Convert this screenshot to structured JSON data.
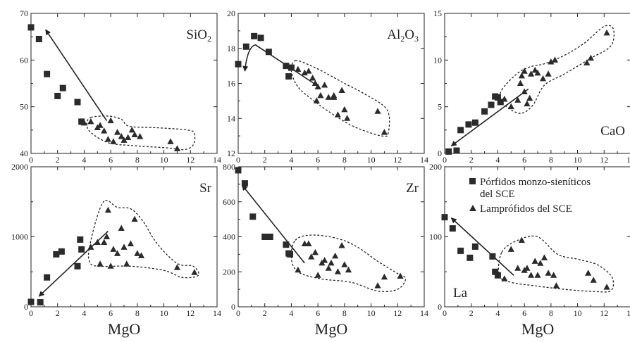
{
  "chart_data": [
    {
      "type": "scatter",
      "title": "SiO2",
      "title_main": "SiO",
      "title_sub": "2",
      "xlabel": "",
      "xlim": [
        0,
        14
      ],
      "ylim": [
        40,
        70
      ],
      "xticks": [
        "0",
        "2",
        "4",
        "6",
        "8",
        "10",
        "12",
        "14"
      ],
      "yticks": [
        "40",
        "50",
        "60",
        "70"
      ],
      "series": [
        {
          "name": "Pórfidos monzo-sieníticos del SCE",
          "marker": "square",
          "x": [
            0,
            0.6,
            1.2,
            2,
            2.4,
            3.5,
            3.8
          ],
          "y": [
            67,
            64.5,
            57,
            52.3,
            54,
            51,
            46.8
          ]
        },
        {
          "name": "Lamprófidos del SCE",
          "marker": "triangle",
          "x": [
            4,
            4.5,
            5,
            5.2,
            5.5,
            5.8,
            6,
            6.2,
            6.5,
            6.8,
            7,
            7.3,
            7.6,
            7.8,
            8.2,
            10.5,
            11
          ],
          "y": [
            46.5,
            46.8,
            45.5,
            46,
            44.8,
            43,
            47,
            42.5,
            44.5,
            43.6,
            42.8,
            43.4,
            45,
            44,
            43.6,
            42.5,
            41
          ]
        }
      ],
      "arrow": {
        "from": [
          5.7,
          47
        ],
        "to": [
          1.1,
          66.5
        ]
      },
      "field": [
        [
          4.5,
          47.7
        ],
        [
          5.8,
          48
        ],
        [
          6.8,
          47.3
        ],
        [
          7.4,
          45.8
        ],
        [
          9.5,
          45.5
        ],
        [
          11.8,
          45
        ],
        [
          12.3,
          44.2
        ],
        [
          12.2,
          41.8
        ],
        [
          11.5,
          40.8
        ],
        [
          10.2,
          41.2
        ],
        [
          7.5,
          41.7
        ],
        [
          5.8,
          42.3
        ],
        [
          4.5,
          44.5
        ],
        [
          4.2,
          46.3
        ]
      ]
    },
    {
      "type": "scatter",
      "title": "Al2O3",
      "title_main": "Al",
      "title_sub": "2",
      "title_main2": "O",
      "title_sub2": "3",
      "xlabel": "",
      "xlim": [
        0,
        14
      ],
      "ylim": [
        12,
        20
      ],
      "xticks": [
        "0",
        "2",
        "4",
        "6",
        "8",
        "10",
        "12",
        "14"
      ],
      "yticks": [
        "12",
        "14",
        "16",
        "18",
        "20"
      ],
      "series": [
        {
          "name": "Pórfidos monzo-sieníticos del SCE",
          "marker": "square",
          "x": [
            0,
            0.6,
            1.2,
            1.7,
            2.3,
            3.6,
            3.8,
            4
          ],
          "y": [
            17.1,
            18.1,
            18.7,
            18.6,
            17.8,
            17,
            16.4,
            16.9
          ]
        },
        {
          "name": "Lamprófidos del SCE",
          "marker": "triangle",
          "x": [
            4.5,
            5,
            5.3,
            5.6,
            5.8,
            6,
            6.2,
            6.5,
            6.8,
            7.2,
            7.5,
            7.8,
            8,
            8.2,
            10.5,
            11
          ],
          "y": [
            16.8,
            16.6,
            16.7,
            16.3,
            16,
            15.8,
            15.3,
            15.9,
            15.2,
            15.3,
            14.2,
            15.6,
            14.5,
            14,
            14.4,
            13.2
          ]
        },
        {
          "name": "",
          "marker": "triangle",
          "x": [
            5.9,
            7.2
          ],
          "y": [
            15,
            15.2
          ]
        }
      ],
      "arrow": {
        "points": [
          [
            5.7,
            16
          ],
          [
            1.3,
            18.2
          ],
          [
            0.7,
            18.1
          ],
          [
            0.5,
            16.7
          ]
        ]
      },
      "field": [
        [
          4.3,
          17.3
        ],
        [
          5.5,
          17
        ],
        [
          6.8,
          16.5
        ],
        [
          8,
          16
        ],
        [
          9.5,
          15.4
        ],
        [
          11.2,
          14.5
        ],
        [
          11.3,
          13.2
        ],
        [
          10.8,
          13
        ],
        [
          8.8,
          13.5
        ],
        [
          7.2,
          14.2
        ],
        [
          5.7,
          15
        ],
        [
          4.5,
          15.8
        ],
        [
          4,
          16.7
        ]
      ]
    },
    {
      "type": "scatter",
      "title": "CaO",
      "xlabel": "",
      "xlim": [
        0,
        14
      ],
      "ylim": [
        0,
        15
      ],
      "xticks": [
        "0",
        "2",
        "4",
        "6",
        "8",
        "10",
        "12",
        "14"
      ],
      "yticks": [
        "0",
        "5",
        "10",
        "15"
      ],
      "series": [
        {
          "name": "Pórfidos monzo-sieníticos del SCE",
          "marker": "square",
          "x": [
            0.3,
            0.9,
            1.2,
            1.8,
            2.3,
            3,
            3.5,
            3.8,
            4,
            4.2
          ],
          "y": [
            0.2,
            0.3,
            2.5,
            3.1,
            3.3,
            4.5,
            5.2,
            6.1,
            6,
            5.5
          ]
        },
        {
          "name": "Lamprófidos del SCE",
          "marker": "triangle",
          "x": [
            4.5,
            5,
            5.5,
            5.7,
            5.8,
            6,
            6.2,
            6.5,
            6.8,
            7,
            7.4,
            7.8,
            8,
            8.3,
            10.7,
            11,
            12.2
          ],
          "y": [
            5.8,
            5,
            5.7,
            7.5,
            8.3,
            8.8,
            5.3,
            8.5,
            8.9,
            8.6,
            8,
            8.5,
            9.8,
            10,
            9.7,
            10.2,
            12.9
          ]
        },
        {
          "name": "",
          "marker": "triangle",
          "x": [
            6,
            6.4
          ],
          "y": [
            6.6,
            5.9
          ]
        }
      ],
      "arrow": {
        "from": [
          6.3,
          6.9
        ],
        "to": [
          0.5,
          0.8
        ]
      },
      "field": [
        [
          4.3,
          6.8
        ],
        [
          5.5,
          8.6
        ],
        [
          6.5,
          9.3
        ],
        [
          7.5,
          9.6
        ],
        [
          9,
          10.5
        ],
        [
          10.5,
          11.8
        ],
        [
          12,
          13.6
        ],
        [
          12.7,
          13.3
        ],
        [
          12.5,
          11.5
        ],
        [
          11,
          10.2
        ],
        [
          9,
          8.5
        ],
        [
          7.5,
          7.3
        ],
        [
          6.6,
          5.1
        ],
        [
          5.6,
          4.3
        ],
        [
          4.3,
          5.5
        ]
      ]
    },
    {
      "type": "scatter",
      "title": "Sr",
      "xlabel": "MgO",
      "xlim": [
        0,
        14
      ],
      "ylim": [
        0,
        2000
      ],
      "xticks": [
        "0",
        "2",
        "4",
        "6",
        "8",
        "10",
        "12",
        "14"
      ],
      "yticks": [
        "0",
        "1000",
        "2000"
      ],
      "series": [
        {
          "name": "Pórfidos monzo-sieníticos del SCE",
          "marker": "square",
          "x": [
            0,
            0.7,
            1.2,
            1.9,
            2.3,
            3.5,
            3.7,
            3.8
          ],
          "y": [
            70,
            65,
            420,
            750,
            790,
            580,
            960,
            820
          ]
        },
        {
          "name": "Lamprófidos del SCE",
          "marker": "triangle",
          "x": [
            4.5,
            5,
            5.2,
            5.5,
            5.7,
            5.8,
            6,
            6.2,
            6.5,
            6.8,
            7,
            7.2,
            7.5,
            7.8,
            8,
            8.3,
            11,
            12.3
          ],
          "y": [
            850,
            920,
            610,
            920,
            1000,
            1380,
            580,
            820,
            760,
            1120,
            850,
            610,
            900,
            1250,
            760,
            730,
            560,
            490
          ]
        }
      ],
      "arrow": {
        "from": [
          5.8,
          1080
        ],
        "to": [
          0.6,
          150
        ]
      },
      "field": [
        [
          5.6,
          1520
        ],
        [
          6.5,
          1420
        ],
        [
          7.5,
          1400
        ],
        [
          8.4,
          1230
        ],
        [
          9.5,
          900
        ],
        [
          11,
          620
        ],
        [
          12.2,
          580
        ],
        [
          12.6,
          450
        ],
        [
          11.4,
          420
        ],
        [
          10,
          520
        ],
        [
          7.5,
          580
        ],
        [
          5,
          580
        ],
        [
          4.4,
          650
        ],
        [
          4.4,
          850
        ],
        [
          5,
          1300
        ]
      ]
    },
    {
      "type": "scatter",
      "title": "Zr",
      "xlabel": "MgO",
      "xlim": [
        0,
        14
      ],
      "ylim": [
        0,
        800
      ],
      "xticks": [
        "0",
        "2",
        "4",
        "6",
        "8",
        "10",
        "12",
        "14"
      ],
      "yticks": [
        "0",
        "200",
        "400",
        "600",
        "800"
      ],
      "series": [
        {
          "name": "Pórfidos monzo-sieníticos del SCE",
          "marker": "square",
          "x": [
            0,
            0.5,
            1.1,
            2,
            2.4,
            3.6,
            3.8,
            3.9
          ],
          "y": [
            780,
            705,
            515,
            400,
            400,
            355,
            305,
            300
          ]
        },
        {
          "name": "Lamprófidos del SCE",
          "marker": "triangle",
          "x": [
            4.5,
            5,
            5.3,
            5.5,
            5.8,
            6,
            6.3,
            6.5,
            6.8,
            7,
            7.3,
            7.5,
            7.8,
            8,
            8.3,
            10.5,
            11,
            12.2
          ],
          "y": [
            210,
            360,
            360,
            285,
            310,
            180,
            250,
            265,
            220,
            250,
            290,
            200,
            350,
            240,
            210,
            120,
            170,
            175
          ]
        }
      ],
      "arrow": {
        "from": [
          5,
          250
        ],
        "to": [
          0.3,
          695
        ]
      },
      "field": [
        [
          4.3,
          380
        ],
        [
          5.5,
          410
        ],
        [
          7.5,
          390
        ],
        [
          9,
          340
        ],
        [
          10.5,
          260
        ],
        [
          12,
          190
        ],
        [
          12.6,
          160
        ],
        [
          12,
          100
        ],
        [
          10.5,
          90
        ],
        [
          8.5,
          140
        ],
        [
          6.2,
          160
        ],
        [
          4.5,
          200
        ],
        [
          4,
          280
        ]
      ]
    },
    {
      "type": "scatter",
      "title": "La",
      "xlabel": "MgO",
      "xlim": [
        0,
        14
      ],
      "ylim": [
        0,
        200
      ],
      "xticks": [
        "0",
        "2",
        "4",
        "6",
        "8",
        "10",
        "12",
        "14"
      ],
      "yticks": [
        "0",
        "100",
        "200"
      ],
      "series": [
        {
          "name": "Pórfidos monzo-sieníticos del SCE",
          "marker": "square",
          "x": [
            0,
            0.6,
            1.2,
            1.9,
            2.3,
            3.6,
            3.8,
            4
          ],
          "y": [
            128,
            112,
            80,
            70,
            86,
            72,
            50,
            45
          ]
        },
        {
          "name": "Lamprófidos del SCE",
          "marker": "triangle",
          "x": [
            4.5,
            5,
            5.5,
            5.8,
            6,
            6.2,
            6.5,
            6.8,
            7,
            7.2,
            7.5,
            7.8,
            8.2,
            8.4,
            10.8,
            11.2,
            12.2
          ],
          "y": [
            40,
            82,
            55,
            95,
            52,
            55,
            45,
            65,
            45,
            62,
            70,
            48,
            45,
            30,
            48,
            38,
            28
          ]
        }
      ],
      "arrow": {
        "from": [
          5.2,
          45
        ],
        "to": [
          0.5,
          127
        ]
      },
      "field": [
        [
          4.3,
          78
        ],
        [
          5.5,
          95
        ],
        [
          7,
          100
        ],
        [
          8.5,
          75
        ],
        [
          10,
          68
        ],
        [
          11.5,
          60
        ],
        [
          12.6,
          42
        ],
        [
          12.5,
          23
        ],
        [
          11.2,
          22
        ],
        [
          9,
          25
        ],
        [
          6.8,
          30
        ],
        [
          5,
          35
        ],
        [
          4.1,
          45
        ]
      ]
    }
  ],
  "legend": [
    {
      "marker": "square",
      "line1": "Pórfidos monzo-sieníticos",
      "line2": "del SCE"
    },
    {
      "marker": "triangle",
      "line1": "Lamprófidos del SCE"
    }
  ]
}
